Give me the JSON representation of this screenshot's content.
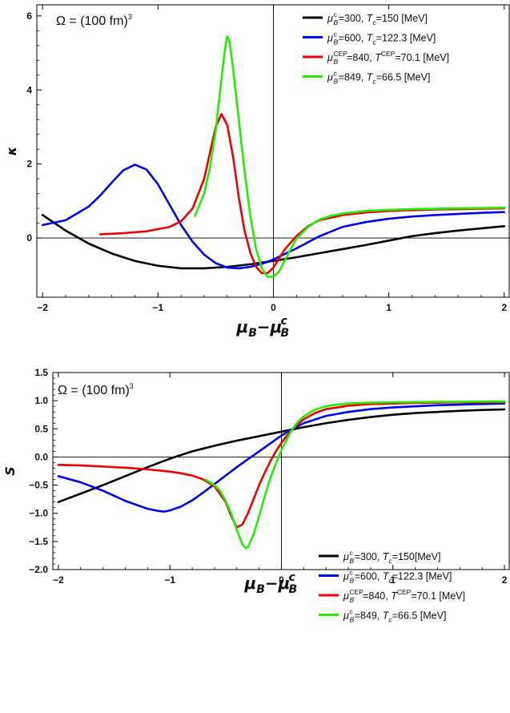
{
  "chart_data": [
    {
      "type": "line",
      "id": "top",
      "ylabel": "κ",
      "xlabel_main": "μ",
      "xlabel_sub1": "B",
      "xlabel_dash": "−μ",
      "xlabel_sub2": "B",
      "xlabel_sup2": "c",
      "annotation": {
        "prefix": "Ω = (100 fm)",
        "sup": "3"
      },
      "xlim": [
        -2.05,
        2.05
      ],
      "ylim": [
        -1.6,
        6.3
      ],
      "xticks": [
        -2,
        -1,
        0,
        1,
        2
      ],
      "xtick_labels": [
        "−2",
        "−1",
        "0",
        "1",
        "2"
      ],
      "yticks": [
        0,
        2,
        4,
        6
      ],
      "ytick_labels": [
        "0",
        "2",
        "4",
        "6"
      ],
      "legend_position": "top-right",
      "series": [
        {
          "color": "#000000",
          "legend": {
            "sym": "μ",
            "sub": "B",
            "sup": "c",
            "mid": "=300, ",
            "sym2": "T",
            "sub2": "c",
            "sup2": "",
            "tail": "=150 [MeV]"
          },
          "x": [
            -2.0,
            -1.8,
            -1.6,
            -1.4,
            -1.2,
            -1.0,
            -0.8,
            -0.6,
            -0.4,
            -0.2,
            0.0,
            0.2,
            0.4,
            0.6,
            0.8,
            1.0,
            1.2,
            1.4,
            1.6,
            1.8,
            2.0
          ],
          "y": [
            0.62,
            0.2,
            -0.15,
            -0.42,
            -0.62,
            -0.75,
            -0.82,
            -0.82,
            -0.78,
            -0.71,
            -0.62,
            -0.52,
            -0.41,
            -0.3,
            -0.19,
            -0.07,
            0.05,
            0.13,
            0.2,
            0.26,
            0.32
          ]
        },
        {
          "color": "#0000ee",
          "legend": {
            "sym": "μ",
            "sub": "B",
            "sup": "c",
            "mid": "=600, ",
            "sym2": "T",
            "sub2": "c",
            "sup2": "",
            "tail": "=122.3 [MeV]"
          },
          "x": [
            -2.0,
            -1.8,
            -1.6,
            -1.5,
            -1.4,
            -1.3,
            -1.2,
            -1.1,
            -1.0,
            -0.9,
            -0.8,
            -0.7,
            -0.6,
            -0.5,
            -0.4,
            -0.3,
            -0.2,
            -0.1,
            0.0,
            0.2,
            0.4,
            0.6,
            0.8,
            1.0,
            1.2,
            1.4,
            1.6,
            1.8,
            2.0
          ],
          "y": [
            0.35,
            0.48,
            0.85,
            1.15,
            1.5,
            1.83,
            1.98,
            1.85,
            1.45,
            0.9,
            0.35,
            -0.1,
            -0.45,
            -0.68,
            -0.8,
            -0.82,
            -0.78,
            -0.7,
            -0.58,
            -0.28,
            0.05,
            0.3,
            0.43,
            0.52,
            0.58,
            0.62,
            0.65,
            0.68,
            0.7
          ]
        },
        {
          "color": "#ee0000",
          "legend": {
            "sym": "μ",
            "sub": "B",
            "sup": "CEP",
            "mid": "=840, ",
            "sym2": "T",
            "sub2": "",
            "sup2": "CEP",
            "tail": "=70.1 [MeV]"
          },
          "x": [
            -1.5,
            -1.3,
            -1.1,
            -0.9,
            -0.8,
            -0.7,
            -0.6,
            -0.55,
            -0.5,
            -0.45,
            -0.4,
            -0.35,
            -0.3,
            -0.25,
            -0.2,
            -0.15,
            -0.1,
            -0.05,
            0.0,
            0.05,
            0.1,
            0.2,
            0.3,
            0.4,
            0.6,
            0.8,
            1.0,
            1.2,
            1.4,
            1.6,
            1.8,
            2.0
          ],
          "y": [
            0.1,
            0.13,
            0.18,
            0.3,
            0.45,
            0.8,
            1.6,
            2.3,
            3.0,
            3.35,
            3.05,
            2.2,
            1.1,
            0.2,
            -0.4,
            -0.78,
            -0.95,
            -0.95,
            -0.8,
            -0.55,
            -0.3,
            0.05,
            0.32,
            0.48,
            0.62,
            0.69,
            0.73,
            0.75,
            0.77,
            0.78,
            0.79,
            0.8
          ]
        },
        {
          "color": "#22ee00",
          "legend": {
            "sym": "μ",
            "sub": "B",
            "sup": "c",
            "mid": "=849, ",
            "sym2": "T",
            "sub2": "c",
            "sup2": "",
            "tail": "=66.5 [MeV]"
          },
          "x": [
            -0.68,
            -0.6,
            -0.55,
            -0.5,
            -0.45,
            -0.42,
            -0.4,
            -0.38,
            -0.35,
            -0.3,
            -0.25,
            -0.2,
            -0.15,
            -0.1,
            -0.05,
            0.0,
            0.05,
            0.1,
            0.15,
            0.2,
            0.3,
            0.4,
            0.5,
            0.6,
            0.8,
            1.0,
            1.2,
            1.4,
            1.6,
            1.8,
            2.0
          ],
          "y": [
            0.6,
            1.2,
            1.9,
            2.9,
            4.3,
            5.1,
            5.45,
            5.3,
            4.6,
            3.2,
            1.8,
            0.6,
            -0.3,
            -0.82,
            -1.05,
            -1.05,
            -0.9,
            -0.6,
            -0.3,
            -0.02,
            0.3,
            0.5,
            0.6,
            0.66,
            0.73,
            0.76,
            0.78,
            0.79,
            0.8,
            0.81,
            0.82
          ]
        }
      ]
    },
    {
      "type": "line",
      "id": "bottom",
      "ylabel": "S",
      "xlabel_main": "μ",
      "xlabel_sub1": "B",
      "xlabel_dash": "−μ",
      "xlabel_sub2": "B",
      "xlabel_sup2": "c",
      "annotation": {
        "prefix": "Ω = (100 fm)",
        "sup": "3"
      },
      "xlim": [
        -2.05,
        2.05
      ],
      "ylim": [
        -2.0,
        1.5
      ],
      "xticks": [
        -2,
        -1,
        0,
        1,
        2
      ],
      "xtick_labels": [
        "−2",
        "−1",
        "0",
        "1",
        "2"
      ],
      "yticks": [
        -2.0,
        -1.5,
        -1.0,
        -0.5,
        0.0,
        0.5,
        1.0,
        1.5
      ],
      "ytick_labels": [
        "−2.0",
        "−1.5",
        "−1.0",
        "−0.5",
        "0.0",
        "0.5",
        "1.0",
        "1.5"
      ],
      "legend_position": "bottom-right",
      "series": [
        {
          "color": "#000000",
          "legend": {
            "sym": "μ",
            "sub": "B",
            "sup": "c",
            "mid": "=300, ",
            "sym2": "T",
            "sub2": "c",
            "sup2": "",
            "tail": "=150[MeV]"
          },
          "x": [
            -2.0,
            -1.8,
            -1.6,
            -1.4,
            -1.2,
            -1.0,
            -0.8,
            -0.6,
            -0.4,
            -0.2,
            0.0,
            0.2,
            0.4,
            0.6,
            0.8,
            1.0,
            1.2,
            1.4,
            1.6,
            1.8,
            2.0
          ],
          "y": [
            -0.8,
            -0.65,
            -0.5,
            -0.34,
            -0.18,
            -0.03,
            0.1,
            0.2,
            0.29,
            0.37,
            0.45,
            0.53,
            0.6,
            0.66,
            0.71,
            0.75,
            0.78,
            0.8,
            0.82,
            0.835,
            0.845
          ]
        },
        {
          "color": "#0000ee",
          "legend": {
            "sym": "μ",
            "sub": "B",
            "sup": "c",
            "mid": "=600, ",
            "sym2": "T",
            "sub2": "c",
            "sup2": "",
            "tail": "=122.3 [MeV]"
          },
          "x": [
            -2.0,
            -1.8,
            -1.6,
            -1.4,
            -1.2,
            -1.1,
            -1.05,
            -1.0,
            -0.9,
            -0.8,
            -0.7,
            -0.6,
            -0.5,
            -0.4,
            -0.3,
            -0.2,
            -0.1,
            0.0,
            0.1,
            0.2,
            0.4,
            0.6,
            0.8,
            1.0,
            1.2,
            1.4,
            1.6,
            1.8,
            2.0
          ],
          "y": [
            -0.34,
            -0.45,
            -0.6,
            -0.78,
            -0.92,
            -0.96,
            -0.97,
            -0.95,
            -0.88,
            -0.77,
            -0.63,
            -0.48,
            -0.33,
            -0.18,
            -0.04,
            0.1,
            0.24,
            0.38,
            0.5,
            0.6,
            0.73,
            0.8,
            0.85,
            0.88,
            0.9,
            0.92,
            0.93,
            0.94,
            0.95
          ]
        },
        {
          "color": "#ee0000",
          "legend": {
            "sym": "μ",
            "sub": "B",
            "sup": "CEP",
            "mid": "=840, ",
            "sym2": "T",
            "sub2": "",
            "sup2": "CEP",
            "tail": "=70.1 [MeV]"
          },
          "x": [
            -2.0,
            -1.8,
            -1.6,
            -1.4,
            -1.2,
            -1.0,
            -0.9,
            -0.8,
            -0.7,
            -0.6,
            -0.5,
            -0.45,
            -0.4,
            -0.35,
            -0.3,
            -0.25,
            -0.2,
            -0.15,
            -0.1,
            -0.05,
            0.0,
            0.05,
            0.1,
            0.2,
            0.3,
            0.4,
            0.6,
            0.8,
            1.0,
            1.2,
            1.4,
            1.6,
            1.8,
            2.0
          ],
          "y": [
            -0.14,
            -0.15,
            -0.17,
            -0.19,
            -0.22,
            -0.26,
            -0.29,
            -0.33,
            -0.4,
            -0.52,
            -0.8,
            -1.05,
            -1.25,
            -1.2,
            -1.0,
            -0.75,
            -0.5,
            -0.28,
            -0.08,
            0.1,
            0.25,
            0.38,
            0.5,
            0.67,
            0.78,
            0.85,
            0.91,
            0.94,
            0.95,
            0.96,
            0.965,
            0.97,
            0.97,
            0.975
          ]
        },
        {
          "color": "#22ee00",
          "legend": {
            "sym": "μ",
            "sub": "B",
            "sup": "c",
            "mid": "=849, ",
            "sym2": "T",
            "sub2": "c",
            "sup2": "",
            "tail": "=66.5 [MeV]"
          },
          "x": [
            -0.68,
            -0.6,
            -0.55,
            -0.5,
            -0.45,
            -0.4,
            -0.35,
            -0.32,
            -0.3,
            -0.25,
            -0.2,
            -0.15,
            -0.1,
            -0.05,
            0.0,
            0.05,
            0.1,
            0.15,
            0.2,
            0.3,
            0.4,
            0.5,
            0.6,
            0.8,
            1.0,
            1.2,
            1.4,
            1.6,
            1.8,
            2.0
          ],
          "y": [
            -0.4,
            -0.5,
            -0.6,
            -0.78,
            -1.0,
            -1.3,
            -1.55,
            -1.62,
            -1.6,
            -1.38,
            -1.05,
            -0.7,
            -0.38,
            -0.12,
            0.12,
            0.32,
            0.5,
            0.63,
            0.72,
            0.84,
            0.9,
            0.93,
            0.95,
            0.965,
            0.97,
            0.975,
            0.98,
            0.98,
            0.985,
            0.985
          ]
        }
      ]
    }
  ]
}
